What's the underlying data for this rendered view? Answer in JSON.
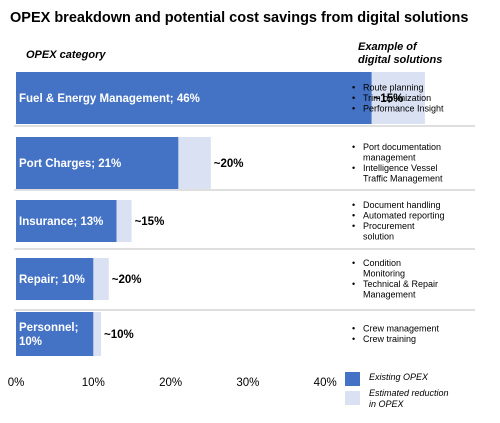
{
  "chart_data": {
    "type": "bar",
    "title": "OPEX breakdown and potential cost savings from digital solutions",
    "category_header": "OPEX category",
    "examples_header": "Example of digital solutions",
    "categories": [
      {
        "label": "Fuel & Energy Management; 46%",
        "opex": 46,
        "reduction_label": "~15%",
        "examples": [
          "Route planning",
          "Trim optimization",
          "Performance Insight"
        ]
      },
      {
        "label": "Port Charges; 21%",
        "opex": 21,
        "reduction_label": "~20%",
        "examples": [
          "Port documentation management",
          "Intelligence Vessel Traffic Management"
        ]
      },
      {
        "label": "Insurance; 13%",
        "opex": 13,
        "reduction_label": "~15%",
        "examples": [
          "Document handling",
          "Automated reporting",
          "Procurement solution"
        ]
      },
      {
        "label": "Repair; 10%",
        "opex": 10,
        "reduction_label": "~20%",
        "examples": [
          "Condition Monitoring",
          "Technical & Repair Management"
        ]
      },
      {
        "label": "Personnel; 10%",
        "opex": 10,
        "reduction_label": "~10%",
        "examples": [
          "Crew management",
          "Crew training"
        ]
      }
    ],
    "series": [
      {
        "name": "Existing OPEX",
        "values": [
          46,
          21,
          13,
          10,
          10
        ],
        "color": "#4472C4"
      },
      {
        "name": "Estimated reduction in OPEX",
        "values": [
          6.9,
          4.2,
          1.95,
          2,
          1
        ],
        "color": "#D9E1F2"
      }
    ],
    "x_ticks": [
      "0%",
      "10%",
      "20%",
      "30%",
      "40%"
    ],
    "xlim": [
      0,
      55
    ],
    "grid": false,
    "legend_position": "bottom-right"
  }
}
